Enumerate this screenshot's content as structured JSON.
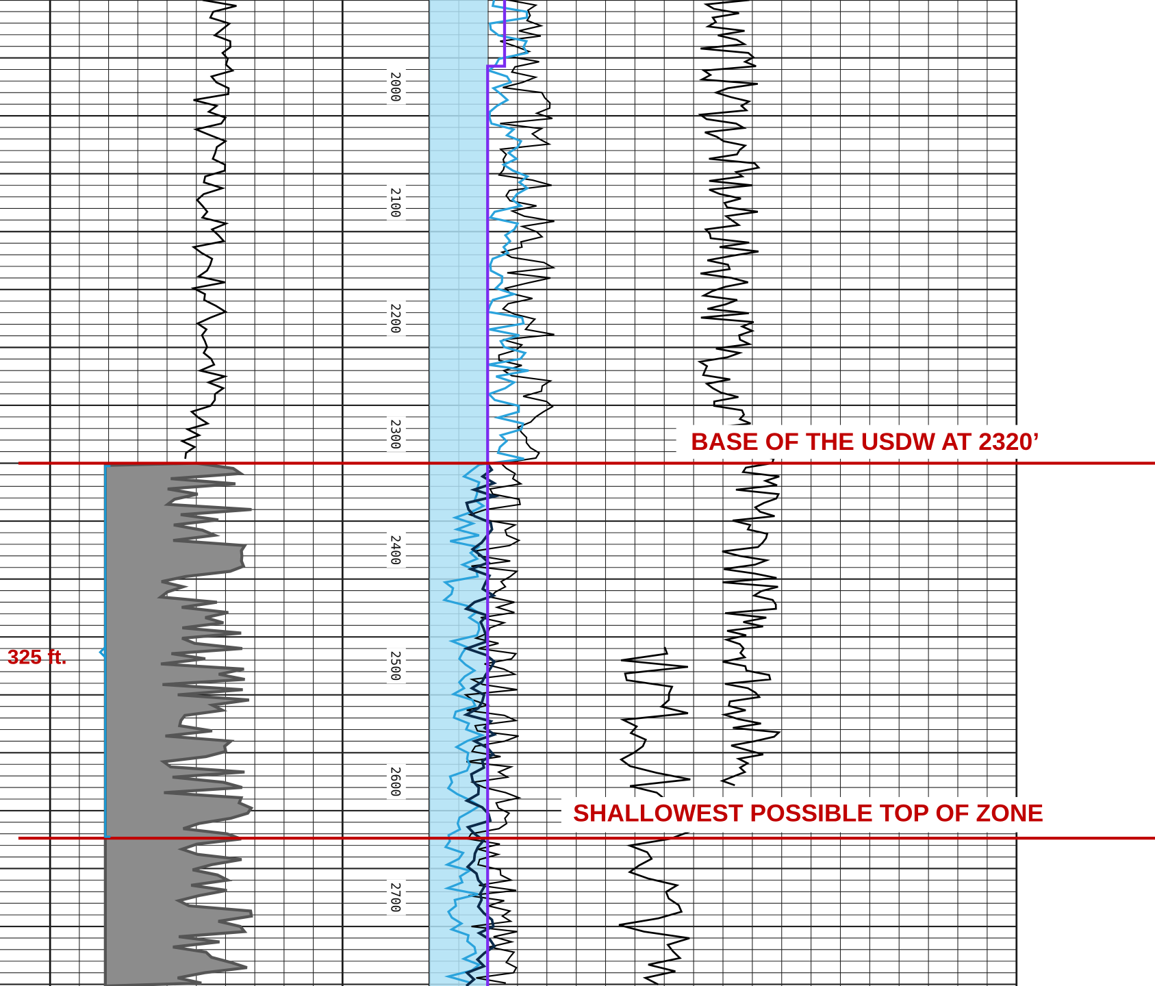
{
  "depth_labels": [
    "2000",
    "2100",
    "2200",
    "2300",
    "2400",
    "2500",
    "2600",
    "2700"
  ],
  "annotations": {
    "base_usdw": "BASE OF THE USDW AT 2320’",
    "top_of_zone": "SHALLOWEST POSSIBLE  TOP OF ZONE",
    "thickness": "325 ft."
  }
}
